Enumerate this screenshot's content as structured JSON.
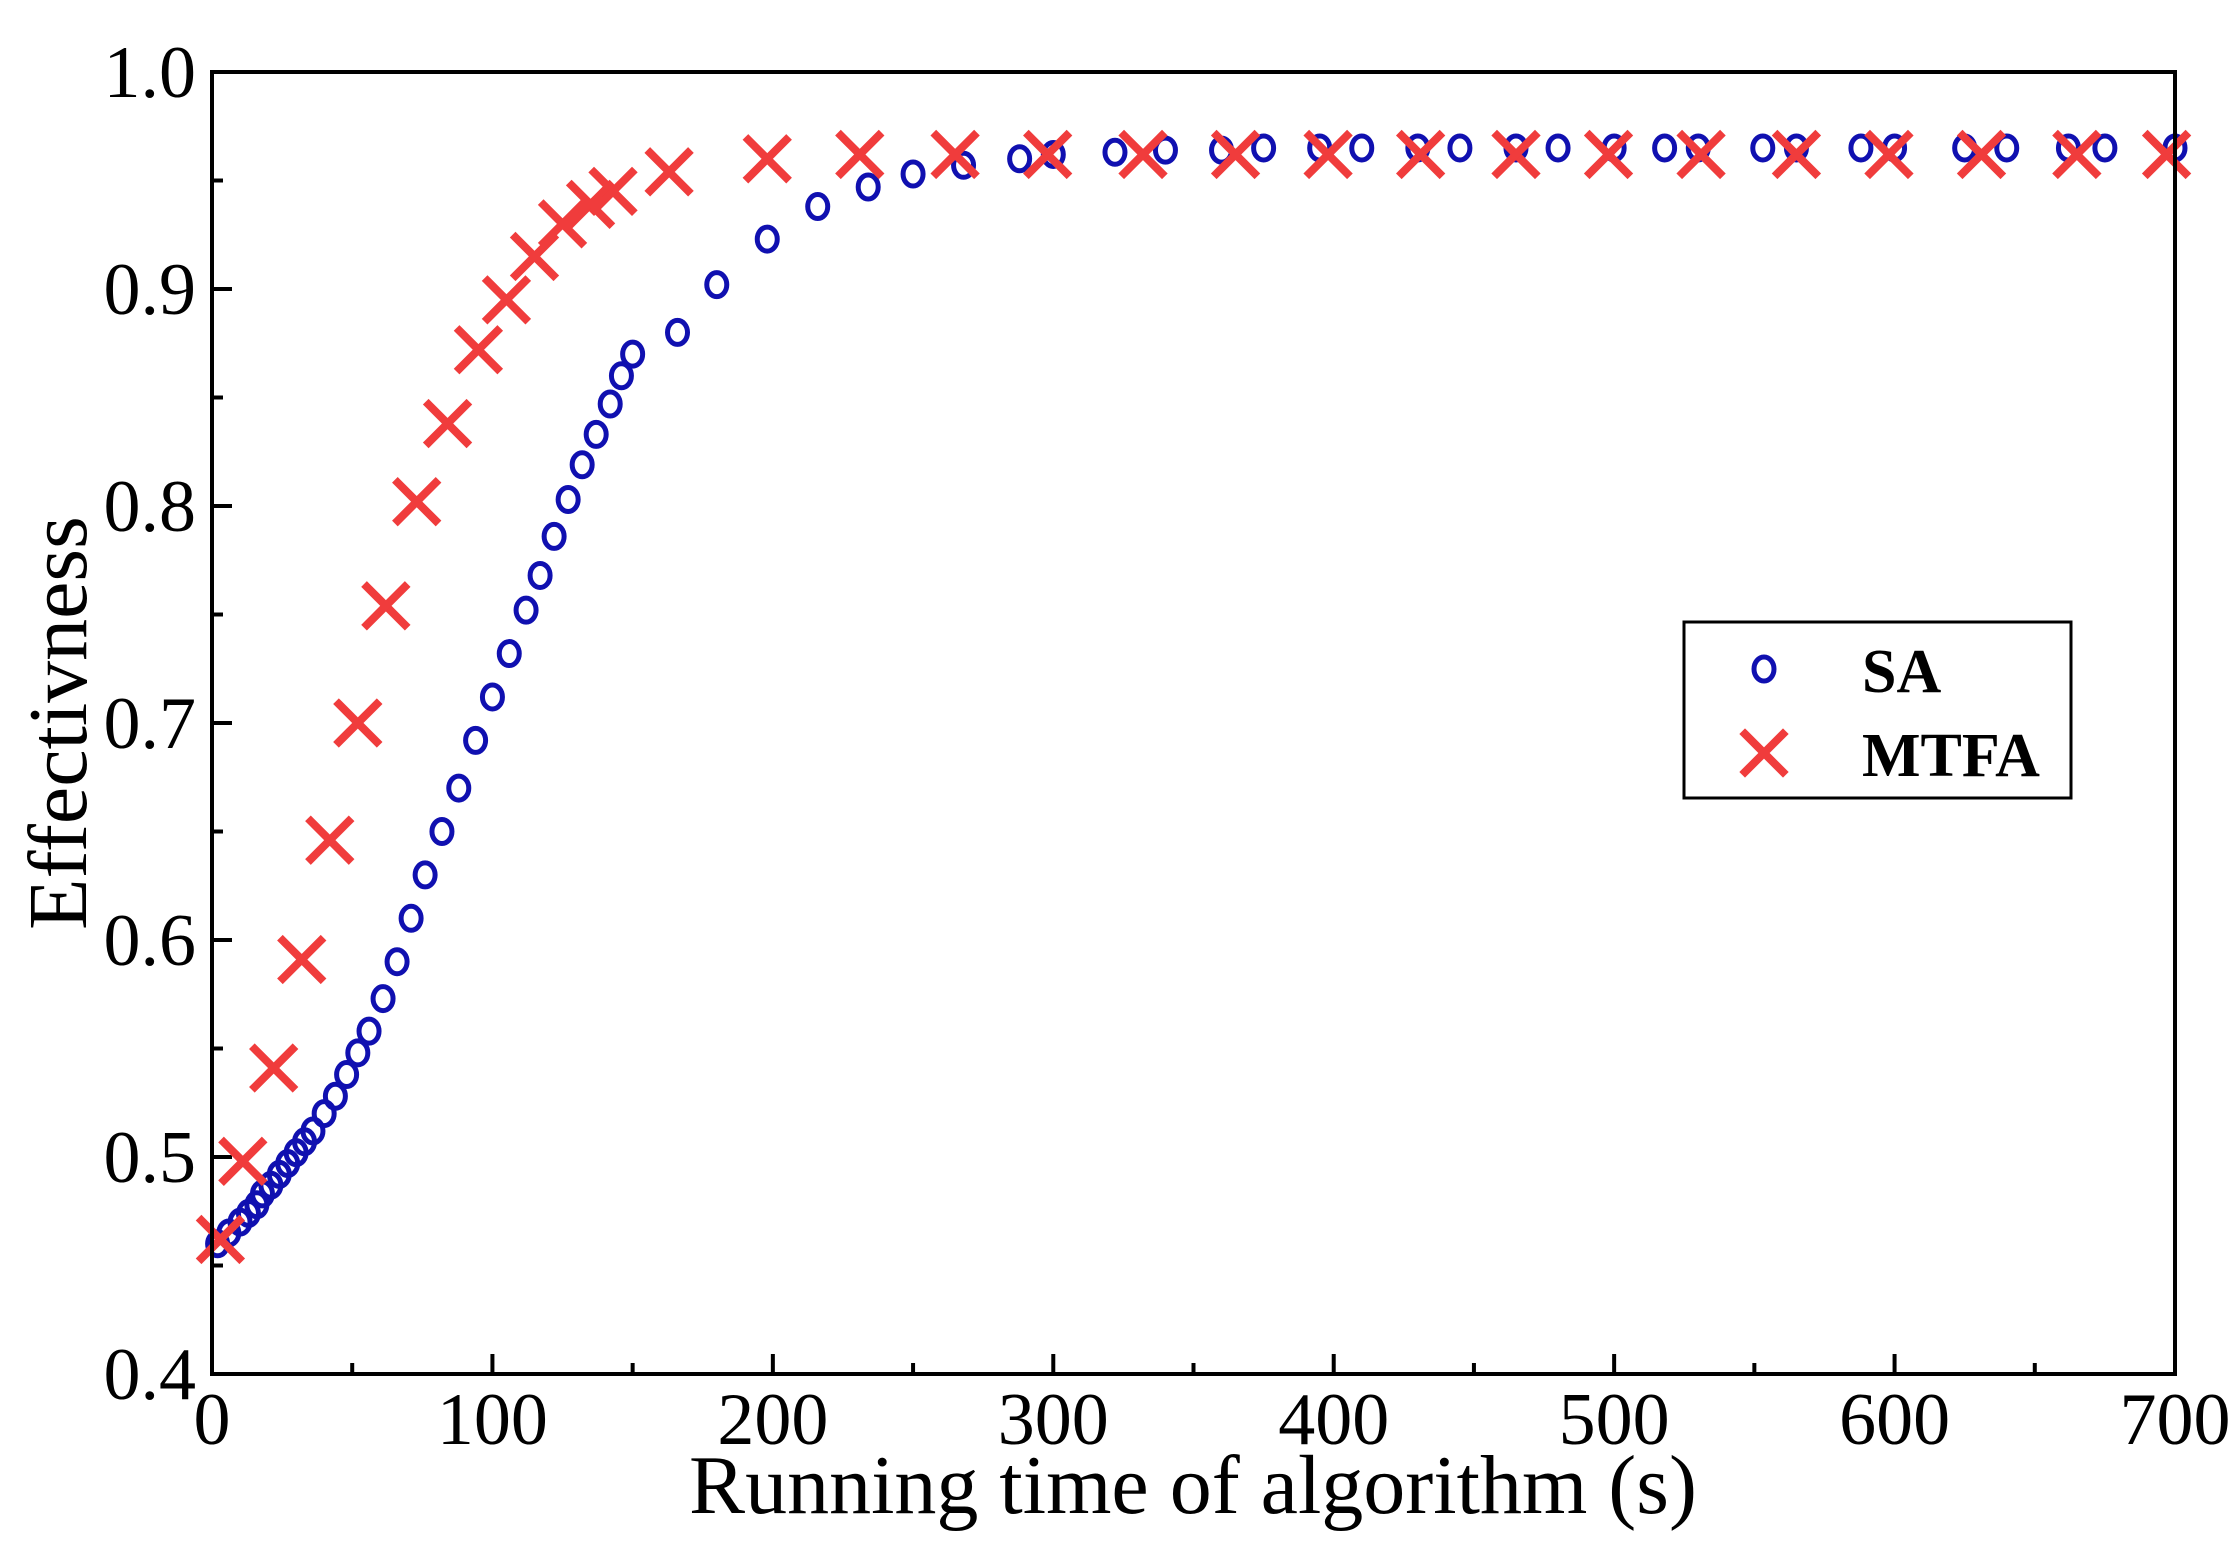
{
  "chart_data": {
    "type": "scatter",
    "title": "",
    "xlabel": "Running time of algorithm (s)",
    "ylabel": "Effectivness",
    "xlim": [
      0,
      700
    ],
    "ylim": [
      0.4,
      1.0
    ],
    "xticks": [
      0,
      100,
      200,
      300,
      400,
      500,
      600,
      700
    ],
    "xtick_labels": [
      "0",
      "100",
      "200",
      "300",
      "400",
      "500",
      "600",
      "700"
    ],
    "yticks": [
      0.4,
      0.5,
      0.6,
      0.7,
      0.8,
      0.9,
      1.0
    ],
    "ytick_labels": [
      "0.4",
      "0.5",
      "0.6",
      "0.7",
      "0.8",
      "0.9",
      "1.0"
    ],
    "grid": false,
    "legend_position": "center-right",
    "series": [
      {
        "name": "SA",
        "marker": "circle",
        "color": "#1010b0",
        "x": [
          2,
          6,
          10,
          13,
          16,
          18,
          21,
          24,
          27,
          30,
          33,
          36,
          40,
          44,
          48,
          52,
          56,
          61,
          66,
          71,
          76,
          82,
          88,
          94,
          100,
          106,
          112,
          117,
          122,
          127,
          132,
          137,
          142,
          146,
          150,
          166,
          180,
          198,
          216,
          234,
          250,
          268,
          288,
          300,
          322,
          340,
          360,
          375,
          395,
          410,
          430,
          445,
          465,
          480,
          500,
          518,
          530,
          553,
          565,
          588,
          600,
          625,
          640,
          662,
          675,
          700
        ],
        "y": [
          0.46,
          0.465,
          0.47,
          0.474,
          0.478,
          0.483,
          0.487,
          0.492,
          0.497,
          0.502,
          0.507,
          0.512,
          0.52,
          0.528,
          0.538,
          0.548,
          0.558,
          0.573,
          0.59,
          0.61,
          0.63,
          0.65,
          0.67,
          0.692,
          0.712,
          0.732,
          0.752,
          0.768,
          0.786,
          0.803,
          0.819,
          0.833,
          0.847,
          0.86,
          0.87,
          0.88,
          0.902,
          0.923,
          0.938,
          0.947,
          0.953,
          0.957,
          0.96,
          0.962,
          0.963,
          0.964,
          0.964,
          0.965,
          0.965,
          0.965,
          0.965,
          0.965,
          0.965,
          0.965,
          0.965,
          0.965,
          0.965,
          0.965,
          0.965,
          0.965,
          0.965,
          0.965,
          0.965,
          0.965,
          0.965,
          0.965
        ]
      },
      {
        "name": "MTFA",
        "marker": "x",
        "color": "#f03c3c",
        "x": [
          3,
          11,
          22,
          32,
          42,
          52,
          62,
          73,
          84,
          95,
          105,
          115,
          125,
          135,
          143,
          163,
          198,
          231,
          265,
          298,
          332,
          365,
          398,
          431,
          465,
          498,
          531,
          565,
          598,
          631,
          665,
          697
        ],
        "y": [
          0.462,
          0.498,
          0.541,
          0.591,
          0.646,
          0.7,
          0.754,
          0.802,
          0.838,
          0.872,
          0.895,
          0.915,
          0.93,
          0.939,
          0.945,
          0.954,
          0.96,
          0.962,
          0.962,
          0.962,
          0.962,
          0.962,
          0.962,
          0.962,
          0.962,
          0.962,
          0.962,
          0.962,
          0.962,
          0.962,
          0.962,
          0.962
        ]
      }
    ]
  }
}
